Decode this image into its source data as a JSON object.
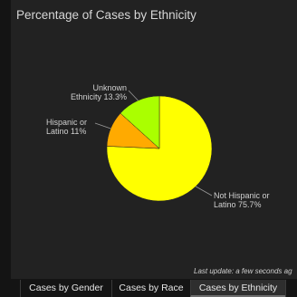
{
  "panel": {
    "title": "Percentage of Cases by Ethnicity",
    "last_update": "Last update: a few seconds ag"
  },
  "chart_data": {
    "type": "pie",
    "title": "Percentage of Cases by Ethnicity",
    "slices": [
      {
        "label": "Not Hispanic or Latino",
        "value": 75.7,
        "display": [
          "Not Hispanic or",
          "Latino 75.7%"
        ],
        "color": "#ffff00"
      },
      {
        "label": "Hispanic or Latino",
        "value": 11,
        "display": [
          "Hispanic or",
          "Latino 11%"
        ],
        "color": "#ffaa00"
      },
      {
        "label": "Unknown Ethnicity",
        "value": 13.3,
        "display": [
          "Unknown",
          "Ethnicity 13.3%"
        ],
        "color": "#aaff00"
      }
    ],
    "legend": "none"
  },
  "tabs": [
    {
      "label": "Cases by Gender",
      "active": false
    },
    {
      "label": "Cases by Race",
      "active": false
    },
    {
      "label": "Cases by Ethnicity",
      "active": true
    }
  ]
}
